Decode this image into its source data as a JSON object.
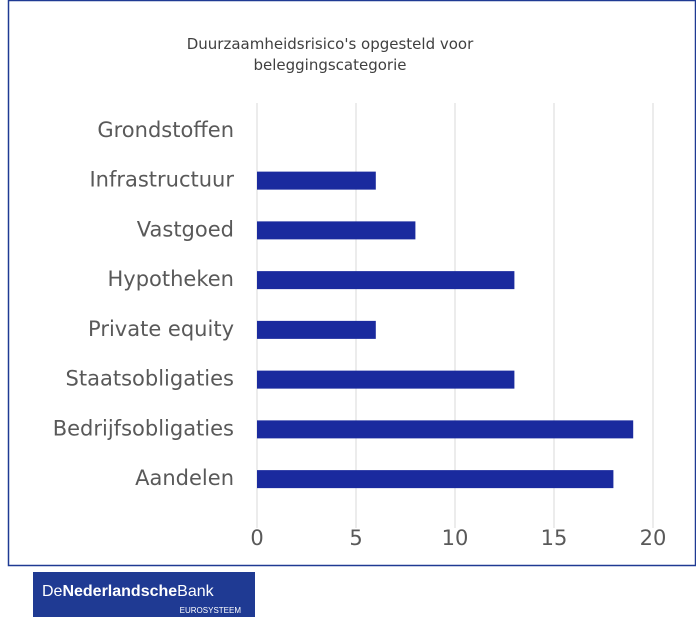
{
  "chart_data": {
    "type": "bar",
    "orientation": "horizontal",
    "title": "Duurzaamheidsrisico's opgesteld voor beleggingscategorie",
    "categories": [
      "Grondstoffen",
      "Infrastructuur",
      "Vastgoed",
      "Hypotheken",
      "Private equity",
      "Staatsobligaties",
      "Bedrijfsobligaties",
      "Aandelen"
    ],
    "values": [
      0,
      6,
      8,
      13,
      6,
      13,
      19,
      18
    ],
    "color": "#1a2a9e",
    "xlim": [
      0,
      20
    ],
    "xticks": [
      0,
      5,
      10,
      15,
      20
    ],
    "grid": true
  },
  "logo": {
    "name": [
      "De",
      "Nederlandsche",
      "Bank"
    ],
    "sub": "EUROSYSTEEM"
  }
}
